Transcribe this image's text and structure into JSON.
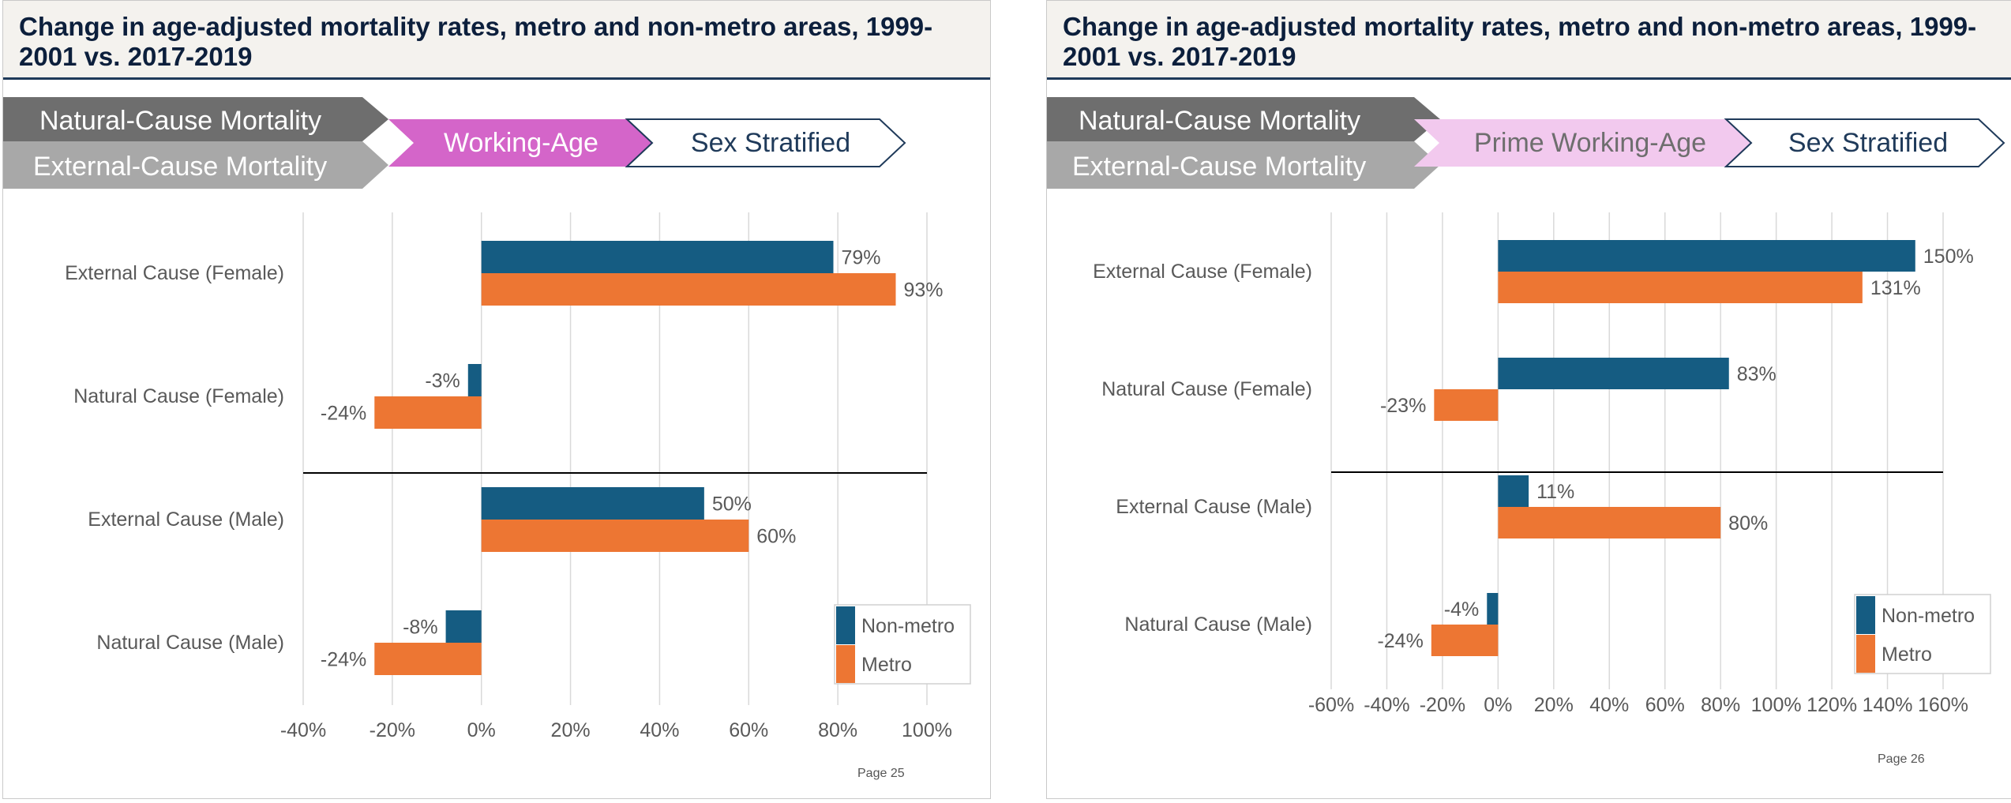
{
  "slides": [
    {
      "title": "Change in age-adjusted mortality rates, metro and non-metro areas, 1999-2001 vs. 2017-2019",
      "flow": {
        "natural": "Natural-Cause Mortality",
        "external": "External-Cause Mortality",
        "age": "Working-Age",
        "sex": "Sex Stratified"
      },
      "page": "Page 25"
    },
    {
      "title": "Change in age-adjusted mortality rates, metro and non-metro areas, 1999-2001 vs. 2017-2019",
      "flow": {
        "natural": "Natural-Cause Mortality",
        "external": "External-Cause Mortality",
        "age": "Prime Working-Age",
        "sex": "Sex Stratified"
      },
      "page": "Page 26"
    }
  ],
  "colors": {
    "non_metro": "#155c82",
    "metro": "#ed7633",
    "flow_dark": "#6e6e6e",
    "flow_light": "#a8a8a8",
    "age_left": "#d465c9",
    "age_right": "#f2c9ee",
    "outline": "#1f3a5a"
  },
  "chart_data": [
    {
      "type": "bar",
      "orientation": "horizontal",
      "categories": [
        "External Cause (Female)",
        "Natural Cause (Female)",
        "External Cause (Male)",
        "Natural Cause (Male)"
      ],
      "series": [
        {
          "name": "Non-metro",
          "values": [
            79,
            -3,
            50,
            -8
          ],
          "labels": [
            "79%",
            "-3%",
            "50%",
            "-8%"
          ]
        },
        {
          "name": "Metro",
          "values": [
            93,
            -24,
            60,
            -24
          ],
          "labels": [
            "93%",
            "-24%",
            "60%",
            "-24%"
          ]
        }
      ],
      "xlim": [
        -40,
        100
      ],
      "xticks": [
        -40,
        -20,
        0,
        20,
        40,
        60,
        80,
        100
      ],
      "xtick_labels": [
        "-40%",
        "-20%",
        "0%",
        "20%",
        "40%",
        "60%",
        "80%",
        "100%"
      ],
      "legend": "bottom-right",
      "grid": true
    },
    {
      "type": "bar",
      "orientation": "horizontal",
      "categories": [
        "External Cause (Female)",
        "Natural Cause (Female)",
        "External Cause (Male)",
        "Natural Cause (Male)"
      ],
      "series": [
        {
          "name": "Non-metro",
          "values": [
            150,
            83,
            11,
            -4
          ],
          "labels": [
            "150%",
            "83%",
            "11%",
            "-4%"
          ]
        },
        {
          "name": "Metro",
          "values": [
            131,
            -23,
            80,
            -24
          ],
          "labels": [
            "131%",
            "-23%",
            "80%",
            "-24%"
          ]
        }
      ],
      "xlim": [
        -60,
        160
      ],
      "xticks": [
        -60,
        -40,
        -20,
        0,
        20,
        40,
        60,
        80,
        100,
        120,
        140,
        160
      ],
      "xtick_labels": [
        "-60%",
        "-40%",
        "-20%",
        "0%",
        "20%",
        "40%",
        "60%",
        "80%",
        "100%",
        "120%",
        "140%",
        "160%"
      ],
      "legend": "bottom-right",
      "grid": true
    }
  ]
}
